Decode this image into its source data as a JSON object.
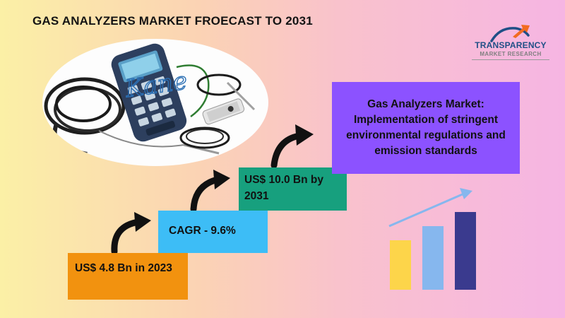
{
  "title": "GAS ANALYZERS MARKET FROECAST TO 2031",
  "logo": {
    "line1": "TRANSPARENCY",
    "line2": "MARKET RESEARCH",
    "accent_color": "#f26b21",
    "text_color": "#1f4f86"
  },
  "photo": {
    "handwritten_brand": "Kane"
  },
  "steps": [
    {
      "text": "US$ 4.8 Bn in 2023",
      "color": "#f2920f"
    },
    {
      "text": "CAGR - 9.6%",
      "color": "#3dbdf6"
    },
    {
      "text": "US$ 10.0 Bn by 2031",
      "color": "#17a07e"
    }
  ],
  "headline": {
    "text": "Gas Analyzers Market: Implementation of stringent environmental regulations and emission standards",
    "color": "#8c52ff"
  },
  "chart_icon": {
    "bar_colors": [
      "#fdd54a",
      "#86b7ee",
      "#3a3a8e"
    ],
    "trend_arrow_color": "#86b7ee"
  },
  "icons": [
    "curved-arrow-icon",
    "bar-chart-icon",
    "gas-analyzer-photo"
  ]
}
